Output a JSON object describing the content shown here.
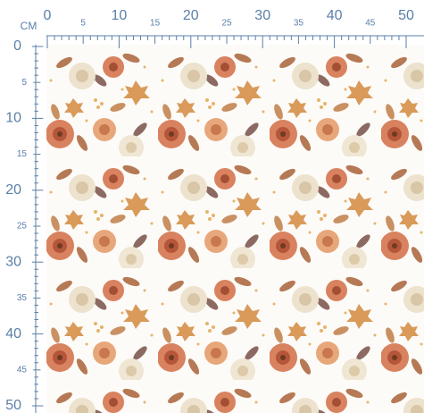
{
  "ruler": {
    "unit": "CM",
    "top_labels": [
      0,
      5,
      10,
      15,
      20,
      25,
      30,
      35,
      40,
      45,
      50
    ],
    "left_labels": [
      0,
      5,
      10,
      15,
      20,
      25,
      30,
      35,
      40,
      45,
      50
    ]
  }
}
